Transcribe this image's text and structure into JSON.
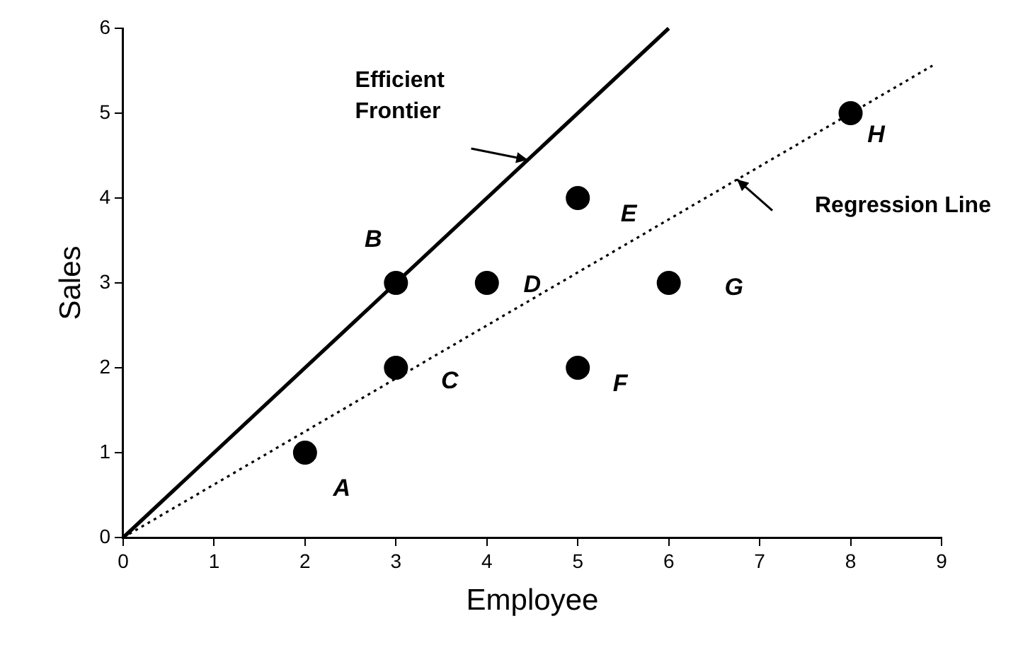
{
  "chart_data": {
    "type": "scatter",
    "xlabel": "Employee",
    "ylabel": "Sales",
    "xlim": [
      0,
      9
    ],
    "ylim": [
      0,
      6
    ],
    "xticks": [
      0,
      1,
      2,
      3,
      4,
      5,
      6,
      7,
      8,
      9
    ],
    "yticks": [
      0,
      1,
      2,
      3,
      4,
      5,
      6
    ],
    "grid": false,
    "legend": false,
    "marker": "circle",
    "series": [
      {
        "color": "#000000",
        "x": [
          2,
          3,
          3,
          4,
          5,
          5,
          6,
          8
        ],
        "values": [
          1,
          3,
          2,
          3,
          4,
          2,
          3,
          5
        ]
      },
      {
        "type": "line",
        "color": "#000000",
        "marker": "none",
        "line_style": "solid",
        "x": [
          0,
          6
        ],
        "values": [
          0,
          6
        ]
      },
      {
        "type": "line",
        "color": "#000000",
        "marker": "none",
        "line_style": "dotted",
        "x": [
          0,
          8.9
        ],
        "values": [
          0,
          5.56
        ]
      }
    ],
    "annotations": [
      {
        "text": "A",
        "x": 2,
        "y": 1
      },
      {
        "text": "B",
        "x": 3,
        "y": 3
      },
      {
        "text": "C",
        "x": 3,
        "y": 2
      },
      {
        "text": "D",
        "x": 4,
        "y": 3
      },
      {
        "text": "E",
        "x": 5,
        "y": 4
      },
      {
        "text": "F",
        "x": 5,
        "y": 2
      },
      {
        "text": "G",
        "x": 6,
        "y": 3
      },
      {
        "text": "H",
        "x": 8,
        "y": 5
      },
      "Efficient Frontier",
      "Regression Line"
    ]
  }
}
